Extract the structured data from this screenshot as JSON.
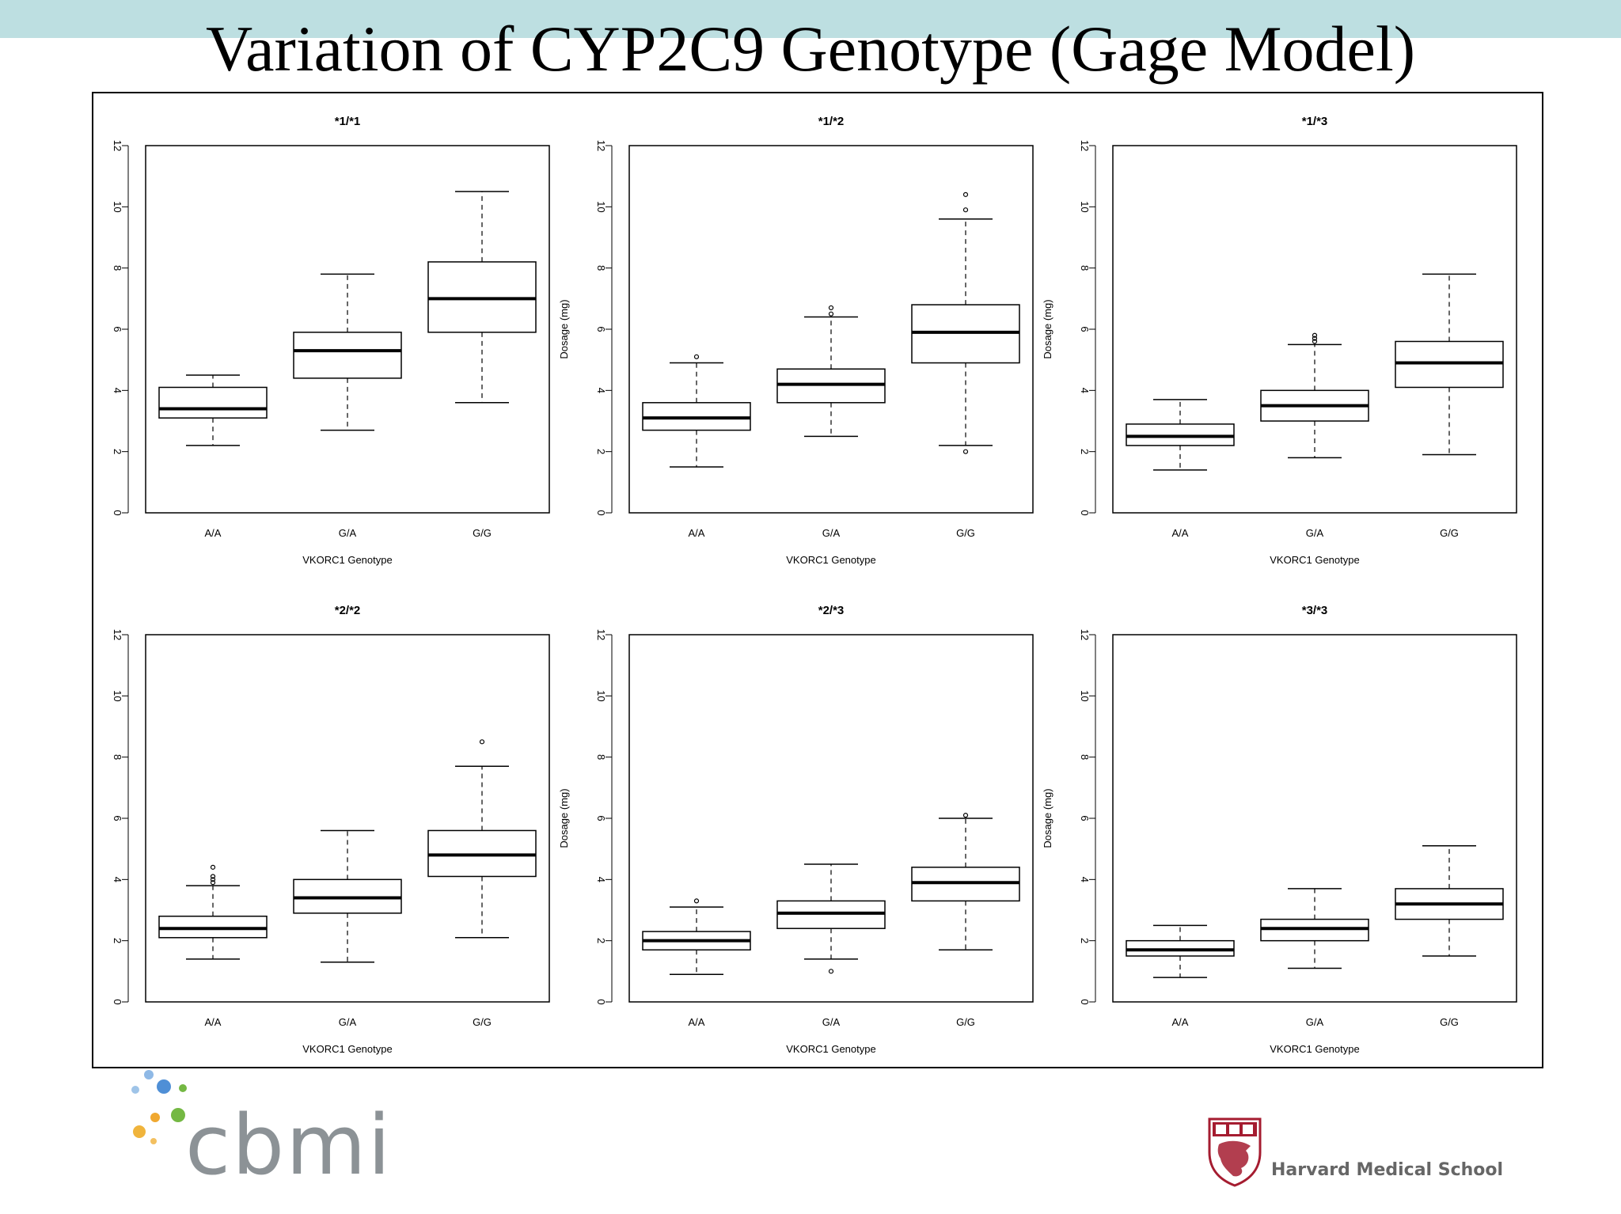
{
  "slide": {
    "title": "Variation of CYP2C9 Genotype (Gage Model)"
  },
  "logos": {
    "cbmi": "cbmi",
    "hms": "Harvard Medical School"
  },
  "colors": {
    "band": "#bddfe1",
    "cbmi_blue": "#4f8fd6",
    "cbmi_green": "#74b843",
    "cbmi_orange": "#f0a830",
    "hms_crimson": "#a51c30"
  },
  "chart_data": [
    {
      "type": "box",
      "title": "*1/*1",
      "xlabel": "VKORC1 Genotype",
      "ylabel": "Dosage (mg)",
      "ylim": [
        0,
        12
      ],
      "yticks": [
        "0",
        "2",
        "4",
        "6",
        "8",
        "10",
        "12"
      ],
      "categories": [
        "A/A",
        "G/A",
        "G/G"
      ],
      "boxes": [
        {
          "min": 2.2,
          "q1": 3.1,
          "median": 3.4,
          "q3": 4.1,
          "max": 4.5,
          "outliers": []
        },
        {
          "min": 2.7,
          "q1": 4.4,
          "median": 5.3,
          "q3": 5.9,
          "max": 7.8,
          "outliers": []
        },
        {
          "min": 3.6,
          "q1": 5.9,
          "median": 7.0,
          "q3": 8.2,
          "max": 10.5,
          "outliers": []
        }
      ]
    },
    {
      "type": "box",
      "title": "*1/*2",
      "xlabel": "VKORC1 Genotype",
      "ylabel": "Dosage (mg)",
      "ylim": [
        0,
        12
      ],
      "yticks": [
        "0",
        "2",
        "4",
        "6",
        "8",
        "10",
        "12"
      ],
      "categories": [
        "A/A",
        "G/A",
        "G/G"
      ],
      "boxes": [
        {
          "min": 1.5,
          "q1": 2.7,
          "median": 3.1,
          "q3": 3.6,
          "max": 4.9,
          "outliers": [
            5.1
          ]
        },
        {
          "min": 2.5,
          "q1": 3.6,
          "median": 4.2,
          "q3": 4.7,
          "max": 6.4,
          "outliers": [
            6.5,
            6.7
          ]
        },
        {
          "min": 2.2,
          "q1": 4.9,
          "median": 5.9,
          "q3": 6.8,
          "max": 9.6,
          "outliers": [
            2.0,
            9.9,
            10.4
          ]
        }
      ]
    },
    {
      "type": "box",
      "title": "*1/*3",
      "xlabel": "VKORC1 Genotype",
      "ylabel": "Dosage (mg)",
      "ylim": [
        0,
        12
      ],
      "yticks": [
        "0",
        "2",
        "4",
        "6",
        "8",
        "10",
        "12"
      ],
      "categories": [
        "A/A",
        "G/A",
        "G/G"
      ],
      "boxes": [
        {
          "min": 1.4,
          "q1": 2.2,
          "median": 2.5,
          "q3": 2.9,
          "max": 3.7,
          "outliers": []
        },
        {
          "min": 1.8,
          "q1": 3.0,
          "median": 3.5,
          "q3": 4.0,
          "max": 5.5,
          "outliers": [
            5.6,
            5.7,
            5.8
          ]
        },
        {
          "min": 1.9,
          "q1": 4.1,
          "median": 4.9,
          "q3": 5.6,
          "max": 7.8,
          "outliers": []
        }
      ]
    },
    {
      "type": "box",
      "title": "*2/*2",
      "xlabel": "VKORC1 Genotype",
      "ylabel": "Dosage (mg)",
      "ylim": [
        0,
        12
      ],
      "yticks": [
        "0",
        "2",
        "4",
        "6",
        "8",
        "10",
        "12"
      ],
      "categories": [
        "A/A",
        "G/A",
        "G/G"
      ],
      "boxes": [
        {
          "min": 1.4,
          "q1": 2.1,
          "median": 2.4,
          "q3": 2.8,
          "max": 3.8,
          "outliers": [
            3.9,
            4.0,
            4.1,
            4.4
          ]
        },
        {
          "min": 1.3,
          "q1": 2.9,
          "median": 3.4,
          "q3": 4.0,
          "max": 5.6,
          "outliers": []
        },
        {
          "min": 2.1,
          "q1": 4.1,
          "median": 4.8,
          "q3": 5.6,
          "max": 7.7,
          "outliers": [
            8.5
          ]
        }
      ]
    },
    {
      "type": "box",
      "title": "*2/*3",
      "xlabel": "VKORC1 Genotype",
      "ylabel": "Dosage (mg)",
      "ylim": [
        0,
        12
      ],
      "yticks": [
        "0",
        "2",
        "4",
        "6",
        "8",
        "10",
        "12"
      ],
      "categories": [
        "A/A",
        "G/A",
        "G/G"
      ],
      "boxes": [
        {
          "min": 0.9,
          "q1": 1.7,
          "median": 2.0,
          "q3": 2.3,
          "max": 3.1,
          "outliers": [
            3.3
          ]
        },
        {
          "min": 1.4,
          "q1": 2.4,
          "median": 2.9,
          "q3": 3.3,
          "max": 4.5,
          "outliers": [
            1.0
          ]
        },
        {
          "min": 1.7,
          "q1": 3.3,
          "median": 3.9,
          "q3": 4.4,
          "max": 6.0,
          "outliers": [
            6.1
          ]
        }
      ]
    },
    {
      "type": "box",
      "title": "*3/*3",
      "xlabel": "VKORC1 Genotype",
      "ylabel": "Dosage (mg)",
      "ylim": [
        0,
        12
      ],
      "yticks": [
        "0",
        "2",
        "4",
        "6",
        "8",
        "10",
        "12"
      ],
      "categories": [
        "A/A",
        "G/A",
        "G/G"
      ],
      "boxes": [
        {
          "min": 0.8,
          "q1": 1.5,
          "median": 1.7,
          "q3": 2.0,
          "max": 2.5,
          "outliers": []
        },
        {
          "min": 1.1,
          "q1": 2.0,
          "median": 2.4,
          "q3": 2.7,
          "max": 3.7,
          "outliers": []
        },
        {
          "min": 1.5,
          "q1": 2.7,
          "median": 3.2,
          "q3": 3.7,
          "max": 5.1,
          "outliers": []
        }
      ]
    }
  ]
}
